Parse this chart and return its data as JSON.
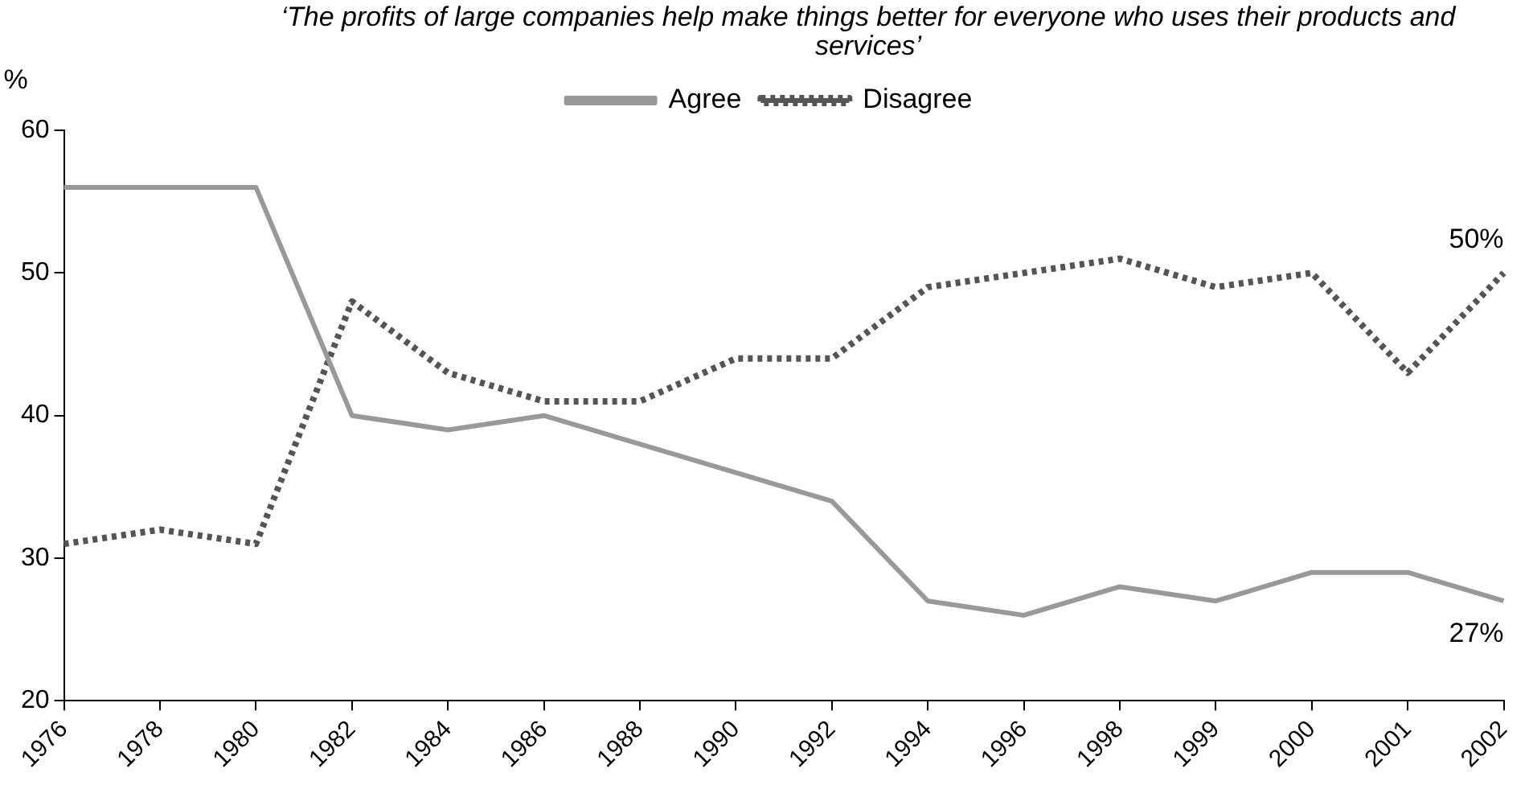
{
  "chart_data": {
    "type": "line",
    "title": "‘The profits of large companies help make things better for everyone who uses their products and services’",
    "ylabel": "%",
    "categories": [
      "1976",
      "1978",
      "1980",
      "1982",
      "1984",
      "1986",
      "1988",
      "1990",
      "1992",
      "1994",
      "1996",
      "1998",
      "1999",
      "2000",
      "2001",
      "2002"
    ],
    "series": [
      {
        "name": "Agree",
        "color": "#999999",
        "line_style": "solid",
        "values": [
          56,
          56,
          56,
          40,
          39,
          40,
          38,
          36,
          34,
          27,
          26,
          28,
          27,
          29,
          29,
          27
        ]
      },
      {
        "name": "Disagree",
        "color": "#555555",
        "line_style": "dotted",
        "values": [
          31,
          32,
          31,
          48,
          43,
          41,
          41,
          44,
          44,
          49,
          50,
          51,
          49,
          50,
          43,
          50
        ]
      }
    ],
    "ylim": [
      20,
      60
    ],
    "yticks": [
      20,
      30,
      40,
      50,
      60
    ],
    "grid": false,
    "legend": "top",
    "marker": "none",
    "annotations": [
      {
        "text": "50%",
        "x": "2002",
        "y": 50
      },
      {
        "text": "27%",
        "x": "2002",
        "y": 27
      }
    ]
  }
}
